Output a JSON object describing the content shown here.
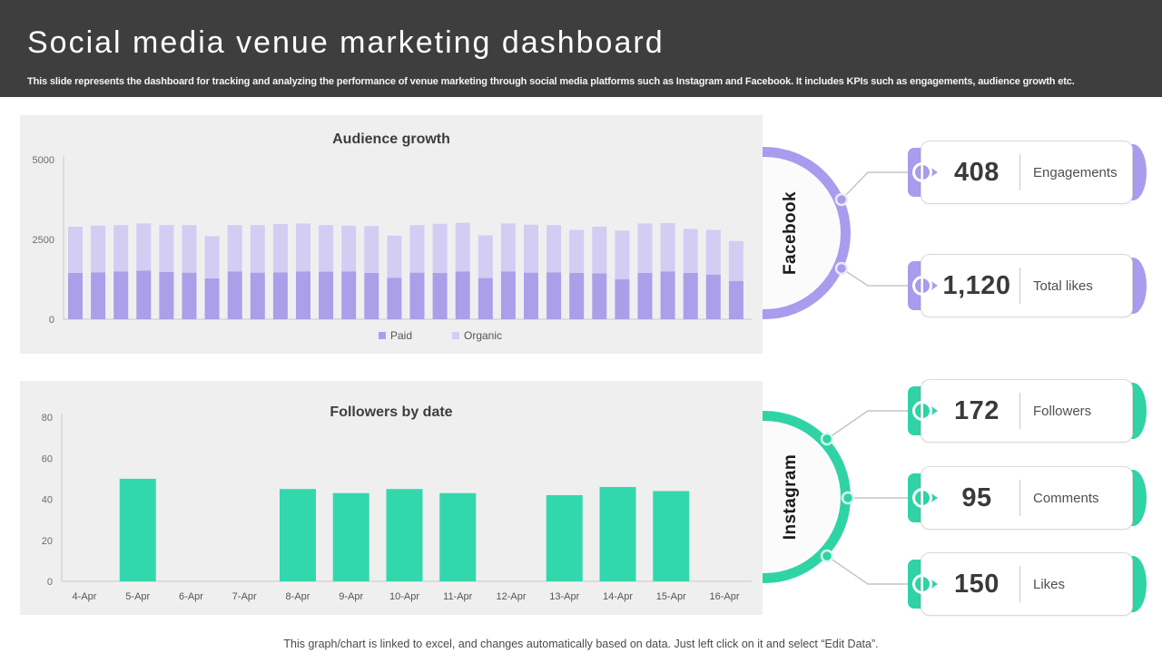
{
  "slide": {
    "title": "Social media venue marketing dashboard",
    "subtitle": "This slide represents the dashboard for tracking and analyzing the performance of venue marketing through social media platforms such as Instagram and Facebook. It includes KPIs such as engagements, audience growth etc.",
    "footer": "This graph/chart is linked to excel, and changes automatically based on data. Just left click on it and select “Edit Data”."
  },
  "colors": {
    "header_bg": "#3f3e3e",
    "panel_bg": "#f0eff0",
    "purple_accent": "#a79ced",
    "teal_accent": "#2fd3a6",
    "paid_bar": "#ab9fe9",
    "organic_bar": "#d3ccf3",
    "teal_bar": "#32d8ac",
    "connector_line": "#b9b9b9",
    "axis_text": "#6b6b6b"
  },
  "chart_data": [
    {
      "type": "bar",
      "stacked": true,
      "title": "Audience growth",
      "xlabel": "",
      "ylabel": "",
      "ylim": [
        0,
        5000
      ],
      "yticks": [
        0,
        2500,
        5000
      ],
      "grid": false,
      "legend_position": "bottom",
      "x_tick_labels_visible": false,
      "series": [
        {
          "name": "Paid",
          "color": "#ab9fe9",
          "values": [
            1450,
            1470,
            1500,
            1520,
            1480,
            1460,
            1280,
            1500,
            1460,
            1470,
            1500,
            1490,
            1500,
            1450,
            1300,
            1460,
            1450,
            1500,
            1290,
            1500,
            1460,
            1470,
            1450,
            1440,
            1250,
            1450,
            1500,
            1450,
            1400,
            1200
          ]
        },
        {
          "name": "Organic",
          "color": "#d3ccf3",
          "values": [
            1450,
            1460,
            1450,
            1480,
            1470,
            1490,
            1320,
            1450,
            1490,
            1510,
            1500,
            1460,
            1430,
            1470,
            1320,
            1490,
            1540,
            1520,
            1340,
            1500,
            1500,
            1480,
            1350,
            1460,
            1530,
            1550,
            1510,
            1380,
            1400,
            1250
          ]
        }
      ]
    },
    {
      "type": "bar",
      "title": "Followers by date",
      "xlabel": "",
      "ylabel": "",
      "ylim": [
        0,
        80
      ],
      "yticks": [
        0,
        20,
        40,
        60,
        80
      ],
      "grid": false,
      "color": "#32d8ac",
      "categories": [
        "4-Apr",
        "5-Apr",
        "6-Apr",
        "7-Apr",
        "8-Apr",
        "9-Apr",
        "10-Apr",
        "11-Apr",
        "12-Apr",
        "13-Apr",
        "14-Apr",
        "15-Apr",
        "16-Apr"
      ],
      "values": [
        0,
        50,
        0,
        0,
        45,
        43,
        45,
        43,
        0,
        42,
        46,
        44,
        0
      ]
    }
  ],
  "platforms": [
    {
      "name": "Facebook",
      "accent": "#a79ced",
      "dot_halo": "#eceafb",
      "kpis": [
        {
          "value": "408",
          "label": "Engagements"
        },
        {
          "value": "1,120",
          "label": "Total likes"
        }
      ]
    },
    {
      "name": "Instagram",
      "accent": "#2fd3a6",
      "dot_halo": "#d9f6ed",
      "kpis": [
        {
          "value": "172",
          "label": "Followers"
        },
        {
          "value": "95",
          "label": "Comments"
        },
        {
          "value": "150",
          "label": "Likes"
        }
      ]
    }
  ]
}
